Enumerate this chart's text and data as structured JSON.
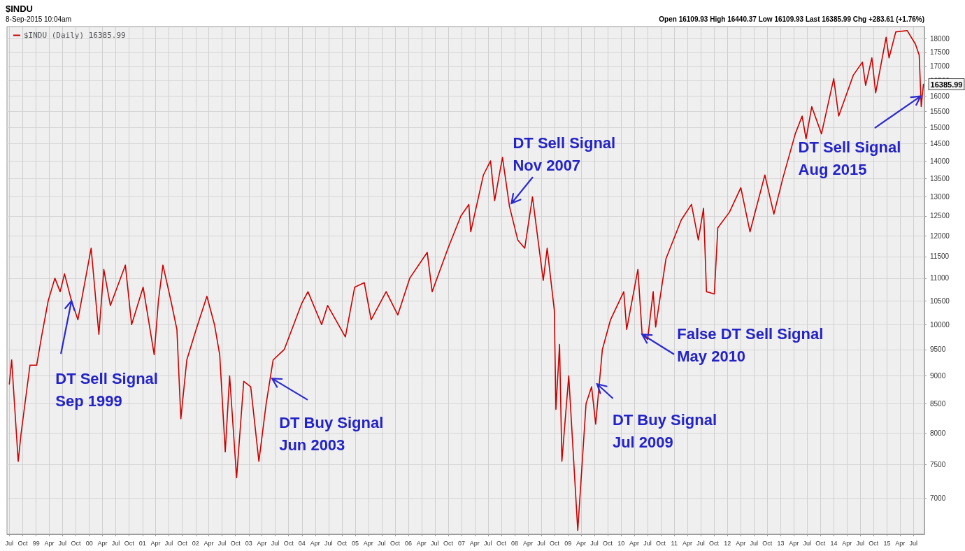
{
  "chart_data": {
    "type": "line",
    "title": "$INDU",
    "subtitle": "8-Sep-2015 10:04am",
    "annotations": [
      "Open 16109.93 High 16440.37 Low 16109.93 Last 16385.99 Chg +283.61 (+1.76%)",
      {
        "text": "DT Sell Signal\nSep 1999",
        "x": "1999-09-01",
        "y": 10500
      },
      {
        "text": "DT Buy Signal\nJun 2003",
        "x": "2003-06-10",
        "y": 8950
      },
      {
        "text": "DT Sell Signal\nNov 2007",
        "x": "2007-12-10",
        "y": 12830
      },
      {
        "text": "DT Buy Signal\nJul 2009",
        "x": "2009-07-20",
        "y": 8850
      },
      {
        "text": "False DT Sell Signal\nMay 2010",
        "x": "2010-05-25",
        "y": 9800
      },
      {
        "text": "DT Sell Signal\nAug 2015",
        "x": "2015-08-20",
        "y": 15990
      }
    ],
    "x": [
      "1998-07-01",
      "1998-07-17",
      "1998-08-31",
      "1998-09-20",
      "1998-11-20",
      "1999-01-05",
      "1999-02-10",
      "1999-03-25",
      "1999-05-10",
      "1999-06-15",
      "1999-07-15",
      "1999-09-01",
      "1999-10-15",
      "2000-01-14",
      "2000-03-07",
      "2000-04-10",
      "2000-05-25",
      "2000-09-05",
      "2000-10-18",
      "2001-01-05",
      "2001-03-22",
      "2001-04-20",
      "2001-05-21",
      "2001-07-15",
      "2001-08-25",
      "2001-09-21",
      "2001-11-01",
      "2002-01-04",
      "2002-03-19",
      "2002-05-10",
      "2002-06-15",
      "2002-07-23",
      "2002-08-22",
      "2002-10-09",
      "2002-11-27",
      "2003-01-14",
      "2003-03-11",
      "2003-04-30",
      "2003-06-17",
      "2003-09-01",
      "2003-12-31",
      "2004-02-11",
      "2004-05-15",
      "2004-06-25",
      "2004-10-25",
      "2004-12-28",
      "2005-03-04",
      "2005-04-20",
      "2005-08-01",
      "2005-10-20",
      "2006-01-10",
      "2006-05-10",
      "2006-06-13",
      "2006-09-30",
      "2006-12-27",
      "2007-02-20",
      "2007-03-05",
      "2007-05-31",
      "2007-07-19",
      "2007-08-16",
      "2007-10-09",
      "2007-11-26",
      "2008-01-22",
      "2008-03-10",
      "2008-05-02",
      "2008-07-15",
      "2008-08-11",
      "2008-09-29",
      "2008-10-10",
      "2008-11-04",
      "2008-11-20",
      "2009-01-06",
      "2009-03-09",
      "2009-05-05",
      "2009-06-12",
      "2009-07-10",
      "2009-08-25",
      "2009-10-20",
      "2010-01-19",
      "2010-02-08",
      "2010-04-26",
      "2010-05-25",
      "2010-07-02",
      "2010-08-09",
      "2010-08-26",
      "2010-11-05",
      "2011-02-18",
      "2011-04-29",
      "2011-06-15",
      "2011-07-21",
      "2011-08-10",
      "2011-10-03",
      "2011-10-27",
      "2012-01-15",
      "2012-04-02",
      "2012-06-04",
      "2012-09-14",
      "2012-11-15",
      "2013-01-15",
      "2013-04-11",
      "2013-05-28",
      "2013-06-24",
      "2013-08-02",
      "2013-10-08",
      "2013-12-31",
      "2014-02-03",
      "2014-05-15",
      "2014-07-16",
      "2014-08-07",
      "2014-09-19",
      "2014-10-15",
      "2014-12-26",
      "2015-01-15",
      "2015-03-02",
      "2015-05-19",
      "2015-07-15",
      "2015-08-10",
      "2015-08-24",
      "2015-09-08"
    ],
    "series": [
      {
        "name": "$INDU (Daily) 16385.99",
        "color": "#cc0000",
        "values": [
          8850,
          9300,
          7550,
          8000,
          9200,
          9200,
          9800,
          10500,
          11000,
          10700,
          11100,
          10500,
          10100,
          11700,
          9800,
          11200,
          10400,
          11300,
          10000,
          10800,
          9400,
          10500,
          11300,
          10500,
          9900,
          8240,
          9300,
          9900,
          10600,
          10000,
          9400,
          7700,
          9000,
          7300,
          8900,
          8800,
          7550,
          8500,
          9300,
          9500,
          10450,
          10700,
          10000,
          10400,
          9750,
          10800,
          10900,
          10100,
          10700,
          10200,
          11000,
          11600,
          10700,
          11700,
          12500,
          12800,
          12100,
          13600,
          14000,
          12900,
          14100,
          12750,
          11900,
          11700,
          13000,
          10950,
          11700,
          10300,
          8400,
          9600,
          7550,
          9000,
          6550,
          8500,
          8800,
          8150,
          9500,
          10100,
          10700,
          9900,
          11200,
          9800,
          9700,
          10700,
          9950,
          11450,
          12400,
          12800,
          11900,
          12700,
          10700,
          10650,
          12200,
          12600,
          13250,
          12100,
          13600,
          12550,
          13500,
          14800,
          15350,
          14650,
          15650,
          14800,
          16580,
          15350,
          16700,
          17150,
          16350,
          17300,
          16100,
          18050,
          17300,
          18250,
          18300,
          17800,
          17400,
          15650,
          16385.99
        ],
        "value_labels": [
          null,
          null,
          null,
          null,
          null,
          null,
          null,
          null,
          null,
          null,
          null,
          null,
          null,
          null,
          null,
          null,
          null,
          null,
          null,
          null,
          null,
          null,
          null,
          null,
          null,
          null,
          null,
          null,
          null,
          null,
          null,
          null,
          null,
          null,
          null,
          null,
          null,
          null,
          null,
          null,
          null,
          null,
          null,
          null,
          null,
          null,
          null,
          null,
          null,
          null,
          null,
          null,
          null,
          null,
          null,
          null,
          null,
          null,
          null,
          null,
          null,
          null,
          null,
          null,
          null,
          null,
          null,
          null,
          null,
          null,
          null,
          null,
          null,
          null,
          null,
          null,
          null,
          null,
          null,
          null,
          null,
          null,
          null,
          null,
          null,
          null,
          null,
          null,
          null,
          null,
          null,
          null,
          null,
          null,
          null,
          null,
          null,
          null,
          null,
          null,
          null,
          null,
          null,
          null,
          null,
          null,
          null,
          null,
          null,
          null,
          null,
          null,
          null,
          null,
          null,
          null,
          null,
          null,
          "16385.99"
        ]
      }
    ],
    "log": "y",
    "xlim": [
      "1998-06-15",
      "2015-09-15"
    ],
    "ylim": [
      6500,
      18450
    ],
    "yticks": [
      7000,
      7500,
      8000,
      8500,
      9000,
      9500,
      10000,
      10500,
      11000,
      11500,
      12000,
      12500,
      13000,
      13500,
      14000,
      14500,
      15000,
      15500,
      16000,
      16500,
      17000,
      17500,
      18000
    ],
    "xticks": [
      {
        "value": "1998-07-01",
        "label": "Jul"
      },
      {
        "value": "1998-10-01",
        "label": "Oct"
      },
      {
        "value": "1999-01-01",
        "label": "99"
      },
      {
        "value": "1999-04-01",
        "label": "Apr"
      },
      {
        "value": "1999-07-01",
        "label": "Jul"
      },
      {
        "value": "1999-10-01",
        "label": "Oct"
      },
      {
        "value": "2000-01-01",
        "label": "00"
      },
      {
        "value": "2000-04-01",
        "label": "Apr"
      },
      {
        "value": "2000-07-01",
        "label": "Jul"
      },
      {
        "value": "2000-10-01",
        "label": "Oct"
      },
      {
        "value": "2001-01-01",
        "label": "01"
      },
      {
        "value": "2001-04-01",
        "label": "Apr"
      },
      {
        "value": "2001-07-01",
        "label": "Jul"
      },
      {
        "value": "2001-10-01",
        "label": "Oct"
      },
      {
        "value": "2002-01-01",
        "label": "02"
      },
      {
        "value": "2002-04-01",
        "label": "Apr"
      },
      {
        "value": "2002-07-01",
        "label": "Jul"
      },
      {
        "value": "2002-10-01",
        "label": "Oct"
      },
      {
        "value": "2003-01-01",
        "label": "03"
      },
      {
        "value": "2003-04-01",
        "label": "Apr"
      },
      {
        "value": "2003-07-01",
        "label": "Jul"
      },
      {
        "value": "2003-10-01",
        "label": "Oct"
      },
      {
        "value": "2004-01-01",
        "label": "04"
      },
      {
        "value": "2004-04-01",
        "label": "Apr"
      },
      {
        "value": "2004-07-01",
        "label": "Jul"
      },
      {
        "value": "2004-10-01",
        "label": "Oct"
      },
      {
        "value": "2005-01-01",
        "label": "05"
      },
      {
        "value": "2005-04-01",
        "label": "Apr"
      },
      {
        "value": "2005-07-01",
        "label": "Jul"
      },
      {
        "value": "2005-10-01",
        "label": "Oct"
      },
      {
        "value": "2006-01-01",
        "label": "06"
      },
      {
        "value": "2006-04-01",
        "label": "Apr"
      },
      {
        "value": "2006-07-01",
        "label": "Jul"
      },
      {
        "value": "2006-10-01",
        "label": "Oct"
      },
      {
        "value": "2007-01-01",
        "label": "07"
      },
      {
        "value": "2007-04-01",
        "label": "Apr"
      },
      {
        "value": "2007-07-01",
        "label": "Jul"
      },
      {
        "value": "2007-10-01",
        "label": "Oct"
      },
      {
        "value": "2008-01-01",
        "label": "08"
      },
      {
        "value": "2008-04-01",
        "label": "Apr"
      },
      {
        "value": "2008-07-01",
        "label": "Jul"
      },
      {
        "value": "2008-10-01",
        "label": "Oct"
      },
      {
        "value": "2009-01-01",
        "label": "09"
      },
      {
        "value": "2009-04-01",
        "label": "Apr"
      },
      {
        "value": "2009-07-01",
        "label": "Jul"
      },
      {
        "value": "2009-10-01",
        "label": "Oct"
      },
      {
        "value": "2010-01-01",
        "label": "10"
      },
      {
        "value": "2010-04-01",
        "label": "Apr"
      },
      {
        "value": "2010-07-01",
        "label": "Jul"
      },
      {
        "value": "2010-10-01",
        "label": "Oct"
      },
      {
        "value": "2011-01-01",
        "label": "11"
      },
      {
        "value": "2011-04-01",
        "label": "Apr"
      },
      {
        "value": "2011-07-01",
        "label": "Jul"
      },
      {
        "value": "2011-10-01",
        "label": "Oct"
      },
      {
        "value": "2012-01-01",
        "label": "12"
      },
      {
        "value": "2012-04-01",
        "label": "Apr"
      },
      {
        "value": "2012-07-01",
        "label": "Jul"
      },
      {
        "value": "2012-10-01",
        "label": "Oct"
      },
      {
        "value": "2013-01-01",
        "label": "13"
      },
      {
        "value": "2013-04-01",
        "label": "Apr"
      },
      {
        "value": "2013-07-01",
        "label": "Jul"
      },
      {
        "value": "2013-10-01",
        "label": "Oct"
      },
      {
        "value": "2014-01-01",
        "label": "14"
      },
      {
        "value": "2014-04-01",
        "label": "Apr"
      },
      {
        "value": "2014-07-01",
        "label": "Jul"
      },
      {
        "value": "2014-10-01",
        "label": "Oct"
      },
      {
        "value": "2015-01-01",
        "label": "15"
      },
      {
        "value": "2015-04-01",
        "label": "Apr"
      },
      {
        "value": "2015-07-01",
        "label": "Jul"
      }
    ],
    "grid": true,
    "legend": "top left",
    "marker": "none",
    "line_style": "solid"
  }
}
